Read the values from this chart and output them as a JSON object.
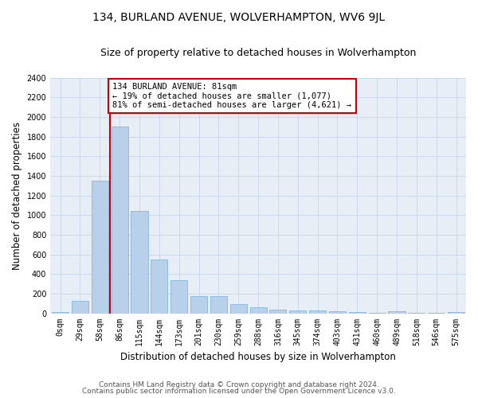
{
  "title": "134, BURLAND AVENUE, WOLVERHAMPTON, WV6 9JL",
  "subtitle": "Size of property relative to detached houses in Wolverhampton",
  "xlabel": "Distribution of detached houses by size in Wolverhampton",
  "ylabel": "Number of detached properties",
  "bar_labels": [
    "0sqm",
    "29sqm",
    "58sqm",
    "86sqm",
    "115sqm",
    "144sqm",
    "173sqm",
    "201sqm",
    "230sqm",
    "259sqm",
    "288sqm",
    "316sqm",
    "345sqm",
    "374sqm",
    "403sqm",
    "431sqm",
    "460sqm",
    "489sqm",
    "518sqm",
    "546sqm",
    "575sqm"
  ],
  "bar_values": [
    10,
    130,
    1350,
    1900,
    1045,
    550,
    335,
    175,
    175,
    95,
    60,
    38,
    25,
    25,
    18,
    12,
    8,
    20,
    5,
    5,
    10
  ],
  "bar_color": "#b8d0ea",
  "bar_edge_color": "#7aafd4",
  "red_line_bin_index": 3,
  "annotation_text": "134 BURLAND AVENUE: 81sqm\n← 19% of detached houses are smaller (1,077)\n81% of semi-detached houses are larger (4,621) →",
  "annotation_box_color": "#ffffff",
  "annotation_box_edge_color": "#cc0000",
  "ylim": [
    0,
    2400
  ],
  "yticks": [
    0,
    200,
    400,
    600,
    800,
    1000,
    1200,
    1400,
    1600,
    1800,
    2000,
    2200,
    2400
  ],
  "grid_color": "#c8d4e8",
  "bg_color": "#e8eef6",
  "footer1": "Contains HM Land Registry data © Crown copyright and database right 2024.",
  "footer2": "Contains public sector information licensed under the Open Government Licence v3.0.",
  "title_fontsize": 10,
  "subtitle_fontsize": 9,
  "xlabel_fontsize": 8.5,
  "ylabel_fontsize": 8.5,
  "tick_fontsize": 7,
  "footer_fontsize": 6.5,
  "annotation_fontsize": 7.5
}
